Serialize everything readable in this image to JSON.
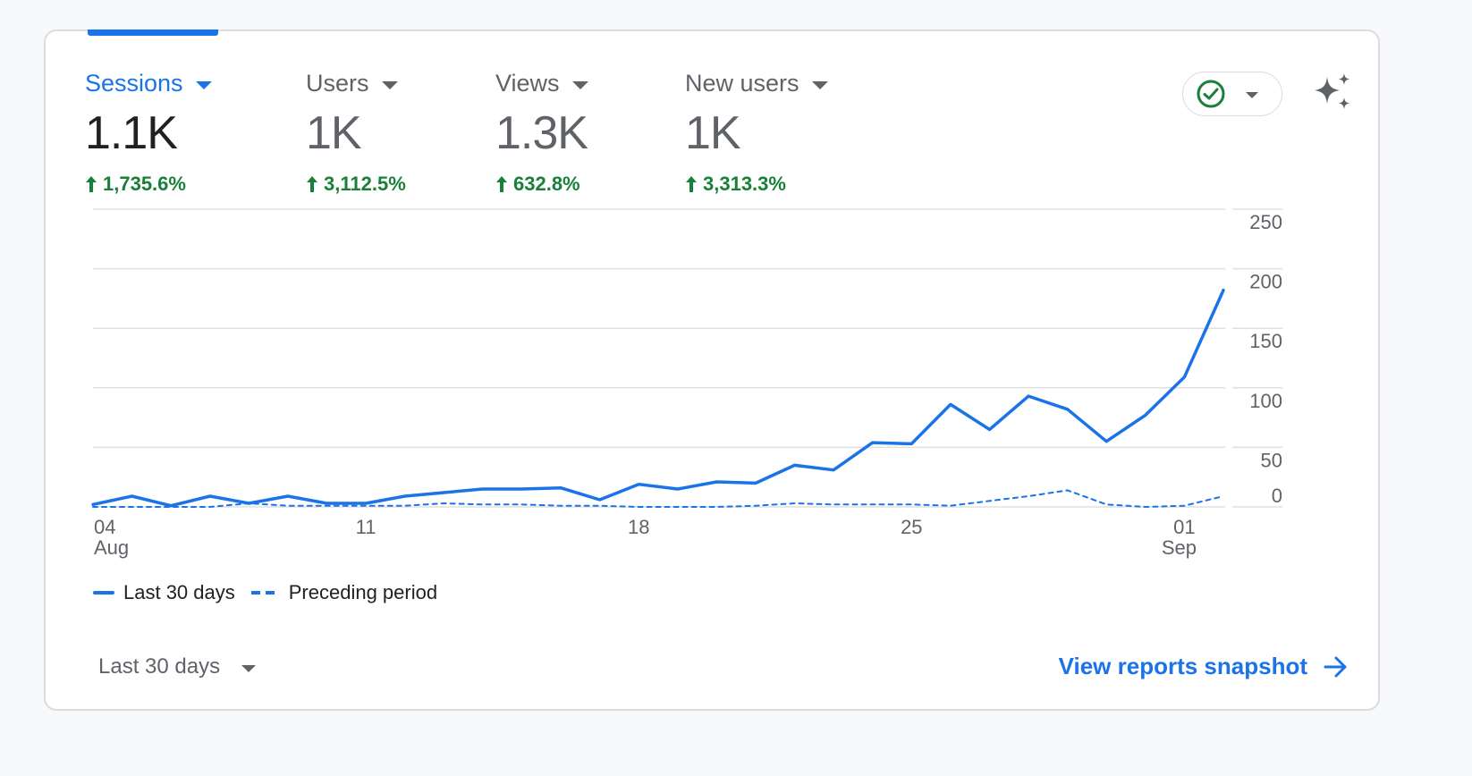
{
  "metrics": [
    {
      "label": "Sessions",
      "value": "1.1K",
      "change": "1,735.6%"
    },
    {
      "label": "Users",
      "value": "1K",
      "change": "3,112.5%"
    },
    {
      "label": "Views",
      "value": "1.3K",
      "change": "632.8%"
    },
    {
      "label": "New users",
      "value": "1K",
      "change": "3,313.3%"
    }
  ],
  "legend": {
    "current": "Last 30 days",
    "previous": "Preceding period"
  },
  "footer": {
    "date_range": "Last 30 days",
    "link": "View reports snapshot"
  },
  "colors": {
    "accent": "#1a73e8",
    "positive": "#188038",
    "check": "#188038",
    "grid": "#e0e0e0"
  },
  "icons": {
    "status": "check-circle-icon",
    "ai": "sparkle-icon",
    "link": "arrow-right-icon"
  },
  "chart_data": {
    "type": "line",
    "y_ticks": [
      "250",
      "200",
      "150",
      "100",
      "50",
      "0"
    ],
    "ylim": [
      0,
      250
    ],
    "x_ticks": [
      {
        "day": 0,
        "label": "04",
        "sub": "Aug"
      },
      {
        "day": 7,
        "label": "11",
        "sub": ""
      },
      {
        "day": 14,
        "label": "18",
        "sub": ""
      },
      {
        "day": 21,
        "label": "25",
        "sub": ""
      },
      {
        "day": 28,
        "label": "01",
        "sub": "Sep"
      }
    ],
    "series": [
      {
        "name": "Last 30 days",
        "style": "solid",
        "values": [
          2,
          9,
          1,
          9,
          3,
          9,
          3,
          3,
          9,
          12,
          15,
          15,
          16,
          6,
          19,
          15,
          21,
          20,
          35,
          31,
          54,
          53,
          86,
          65,
          93,
          82,
          55,
          77,
          109,
          182
        ]
      },
      {
        "name": "Preceding period",
        "style": "dashed",
        "values": [
          0,
          0,
          0,
          0,
          3,
          1,
          1,
          1,
          1,
          3,
          2,
          2,
          1,
          1,
          0,
          0,
          0,
          1,
          3,
          2,
          2,
          2,
          1,
          5,
          9,
          14,
          2,
          0,
          1,
          9
        ]
      }
    ]
  }
}
